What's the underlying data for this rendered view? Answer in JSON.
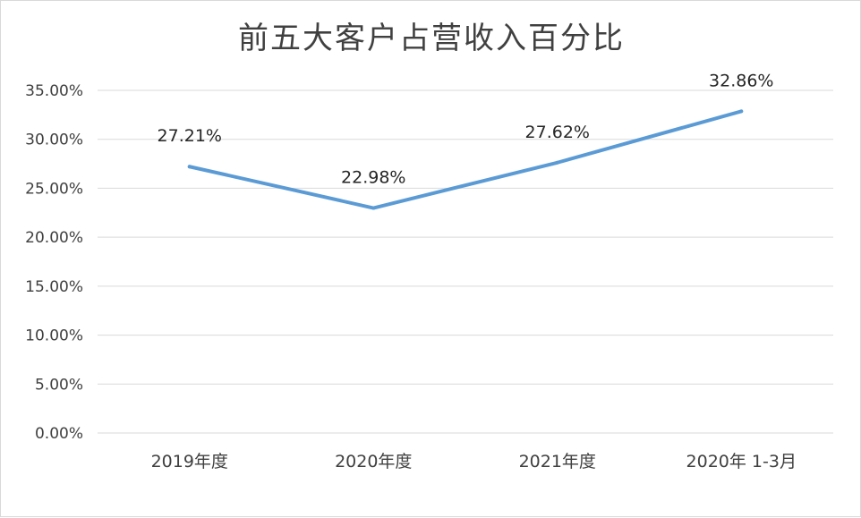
{
  "chart_data": {
    "type": "line",
    "title": "前五大客户占营收入百分比",
    "categories": [
      "2019年度",
      "2020年度",
      "2021年度",
      "2020年 1-3月"
    ],
    "series": [
      {
        "values": [
          27.21,
          22.98,
          27.62,
          32.86
        ],
        "labels": [
          "27.21%",
          "22.98%",
          "27.62%",
          "32.86%"
        ]
      }
    ],
    "ylim": [
      0,
      35
    ],
    "yticks": [
      0,
      5,
      10,
      15,
      20,
      25,
      30,
      35
    ],
    "ytick_labels": [
      "0.00%",
      "5.00%",
      "10.00%",
      "15.00%",
      "20.00%",
      "25.00%",
      "30.00%",
      "35.00%"
    ],
    "grid": true,
    "legend": "none",
    "line_color": "#5b9bd5"
  }
}
